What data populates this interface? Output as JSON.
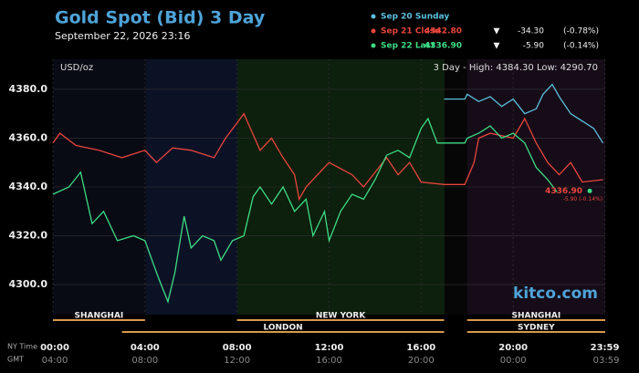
{
  "chart_data": {
    "type": "line",
    "title": "Gold Spot (Bid) 3 Day",
    "subtitle": "September 22, 2026 23:16",
    "unit": "USD/oz",
    "range_text": "3 Day - High: 4384.30  Low: 4290.70",
    "watermark": "kitco.com",
    "last_label": "4336.90",
    "last_change": "-5.90 (-0.14%)",
    "time_row_label": "NY Time",
    "gmt_row_label": "GMT",
    "xlim": [
      0,
      24
    ],
    "ylim": [
      4287.7,
      4392.3
    ],
    "yticks": [
      {
        "value": 4300,
        "label": "4300.0"
      },
      {
        "value": 4320,
        "label": "4320.0"
      },
      {
        "value": 4340,
        "label": "4340.0"
      },
      {
        "value": 4360,
        "label": "4360.0"
      },
      {
        "value": 4380,
        "label": "4380.0"
      }
    ],
    "xticks": [
      {
        "value": 0,
        "label": "00:00"
      },
      {
        "value": 4,
        "label": "04:00"
      },
      {
        "value": 8,
        "label": "08:00"
      },
      {
        "value": 12,
        "label": "12:00"
      },
      {
        "value": 16,
        "label": "16:00"
      },
      {
        "value": 20,
        "label": "20:00"
      },
      {
        "value": 23.98,
        "label": "23:59"
      }
    ],
    "gmt_labels": [
      "04:00",
      "08:00",
      "12:00",
      "16:00",
      "20:00",
      "00:00",
      "03:59"
    ],
    "grid": true,
    "sessions": [
      {
        "name": "SHANGHAI",
        "start": 0,
        "end": 4
      },
      {
        "name": "LONDON",
        "start": 3,
        "end": 17
      },
      {
        "name": "NEW YORK",
        "start": 8,
        "end": 17
      },
      {
        "name": "SHANGHAI",
        "start": 18,
        "end": 24
      },
      {
        "name": "SYDNEY",
        "start": 18,
        "end": 24
      }
    ],
    "series": [
      {
        "name": "Sep 20 Sunday",
        "color": "#5bc0de",
        "x": [
          17.0,
          17.9,
          18.0,
          18.5,
          19.0,
          19.5,
          20.0,
          20.5,
          21.0,
          21.3,
          21.7,
          22.0,
          22.5,
          23.0,
          23.5,
          23.9
        ],
        "values": [
          4376,
          4376,
          4378,
          4375,
          4377,
          4373,
          4376,
          4370,
          4372,
          4378,
          4382,
          4377,
          4370,
          4367,
          4364,
          4358
        ]
      },
      {
        "name": "Sep 21 Close",
        "color": "#e8453c",
        "price": "4342.80",
        "arrow": "▼",
        "change": "-34.30",
        "change_pct": "(-0.78%)",
        "x": [
          0,
          0.3,
          1.0,
          2.0,
          3.0,
          4.0,
          4.5,
          5.2,
          6.0,
          7.0,
          7.5,
          8.3,
          9.0,
          9.5,
          10.0,
          10.5,
          10.7,
          11.0,
          12.0,
          13.0,
          13.5,
          14.5,
          15.0,
          15.5,
          16.0,
          17.0,
          17.9,
          18.3,
          18.5,
          19.0,
          20.0,
          20.5,
          21.0,
          21.5,
          22.0,
          22.5,
          23.0,
          23.9
        ],
        "values": [
          4358,
          4362,
          4357,
          4355,
          4352,
          4355,
          4350,
          4356,
          4355,
          4352,
          4360,
          4370,
          4355,
          4360,
          4352,
          4345,
          4335,
          4340,
          4350,
          4345,
          4340,
          4352,
          4345,
          4350,
          4342,
          4341,
          4341,
          4350,
          4360,
          4362,
          4360,
          4368,
          4358,
          4350,
          4345,
          4350,
          4342,
          4343
        ]
      },
      {
        "name": "Sep 22 Last",
        "color": "#3ddc84",
        "price": "4336.90",
        "arrow": "▼",
        "change": "-5.90",
        "change_pct": "(-0.14%)",
        "x": [
          0,
          0.7,
          1.2,
          1.7,
          2.2,
          2.8,
          3.5,
          4.0,
          4.5,
          4.7,
          5.0,
          5.3,
          5.7,
          6.0,
          6.5,
          7.0,
          7.3,
          7.8,
          8.3,
          8.7,
          9.0,
          9.5,
          10.0,
          10.5,
          11.0,
          11.3,
          11.8,
          12.0,
          12.5,
          13.0,
          13.5,
          14.0,
          14.5,
          15.0,
          15.5,
          16.0,
          16.3,
          16.7,
          17.0,
          17.9,
          18.0,
          18.5,
          19.0,
          19.5,
          20.0,
          20.5,
          21.0,
          21.5,
          21.9
        ],
        "values": [
          4337,
          4340,
          4346,
          4325,
          4330,
          4318,
          4320,
          4318,
          4305,
          4300,
          4293,
          4305,
          4328,
          4315,
          4320,
          4318,
          4310,
          4318,
          4320,
          4336,
          4340,
          4333,
          4340,
          4330,
          4335,
          4320,
          4330,
          4318,
          4330,
          4337,
          4335,
          4343,
          4353,
          4355,
          4352,
          4364,
          4368,
          4358,
          4358,
          4358,
          4360,
          4362,
          4365,
          4360,
          4362,
          4358,
          4348,
          4343,
          4338
        ]
      }
    ]
  }
}
